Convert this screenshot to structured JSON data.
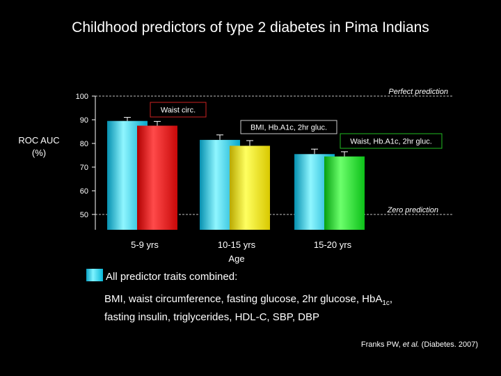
{
  "title": "Childhood predictors of type 2 diabetes in Pima Indians",
  "chart_data": {
    "type": "bar",
    "ylabel_line1": "ROC AUC",
    "ylabel_line2": "(%)",
    "xlabel": "Age",
    "ylim": [
      50,
      100
    ],
    "yticks": [
      100,
      90,
      80,
      70,
      60,
      50
    ],
    "categories": [
      "5-9 yrs",
      "10-15 yrs",
      "15-20 yrs"
    ],
    "groups": [
      {
        "category": "5-9 yrs",
        "bars": [
          {
            "value": 89.5,
            "error": 1.5,
            "series": "All predictor traits combined",
            "color": "#0fbde0"
          },
          {
            "value": 87.5,
            "error": 1.8,
            "series": "Waist circ.",
            "color": "#e8191b"
          }
        ]
      },
      {
        "category": "10-15 yrs",
        "bars": [
          {
            "value": 81.5,
            "error": 2.1,
            "series": "All predictor traits combined",
            "color": "#0fbde0"
          },
          {
            "value": 79.0,
            "error": 2.2,
            "series": "BMI, Hb.A1c, 2hr gluc.",
            "color": "#f0e000"
          }
        ]
      },
      {
        "category": "15-20 yrs",
        "bars": [
          {
            "value": 75.5,
            "error": 2.1,
            "series": "All predictor traits combined",
            "color": "#0fbde0"
          },
          {
            "value": 74.5,
            "error": 2.0,
            "series": "Waist, Hb.A1c, 2hr gluc.",
            "color": "#10d020"
          }
        ]
      }
    ],
    "reference_lines": [
      {
        "value": 100,
        "label": "Perfect prediction"
      },
      {
        "value": 50,
        "label": "Zero prediction"
      }
    ],
    "annotations": [
      {
        "text": "Waist circ.",
        "border_color": "#cc2222"
      },
      {
        "text": "BMI, Hb.A1c, 2hr gluc.",
        "border_color": "#cccccc"
      },
      {
        "text": "Waist, Hb.A1c, 2hr gluc.",
        "border_color": "#22bb22"
      }
    ]
  },
  "legend": {
    "title": "All predictor traits combined:",
    "line1": "BMI, waist circumference, fasting glucose, 2hr  glucose, HbA",
    "line1_sub": "1c",
    "line1_end": ",",
    "line2": "fasting insulin, triglycerides, HDL-C, SBP, DBP"
  },
  "citation": {
    "authors": "Franks PW, ",
    "etal": "et al.",
    "source": " (Diabetes. 2007)"
  }
}
